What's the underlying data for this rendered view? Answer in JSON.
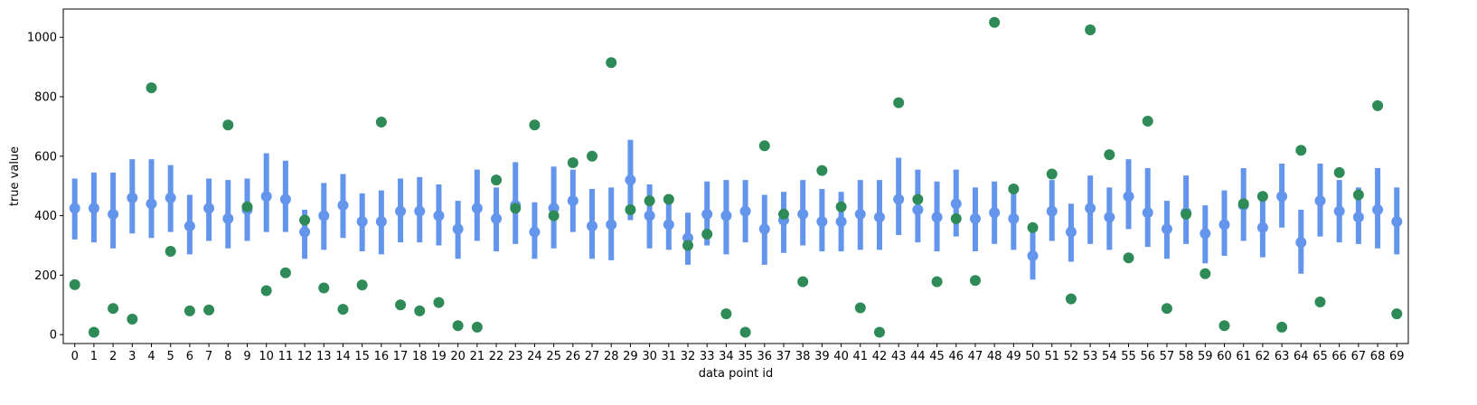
{
  "chart_data": {
    "type": "scatter",
    "xlabel": "data point id",
    "ylabel": "true value",
    "xlim": [
      -0.6,
      69.6
    ],
    "ylim": [
      -30,
      1095
    ],
    "yticks": [
      0,
      200,
      400,
      600,
      800,
      1000
    ],
    "grid": false,
    "colors": {
      "estimate": "#6495ED",
      "true_value": "#2E8B57"
    },
    "x": [
      0,
      1,
      2,
      3,
      4,
      5,
      6,
      7,
      8,
      9,
      10,
      11,
      12,
      13,
      14,
      15,
      16,
      17,
      18,
      19,
      20,
      21,
      22,
      23,
      24,
      25,
      26,
      27,
      28,
      29,
      30,
      31,
      32,
      33,
      34,
      35,
      36,
      37,
      38,
      39,
      40,
      41,
      42,
      43,
      44,
      45,
      46,
      47,
      48,
      49,
      50,
      51,
      52,
      53,
      54,
      55,
      56,
      57,
      58,
      59,
      60,
      61,
      62,
      63,
      64,
      65,
      66,
      67,
      68,
      69
    ],
    "series": [
      {
        "type": "errorbar",
        "y": [
          425,
          425,
          405,
          460,
          440,
          460,
          365,
          425,
          390,
          420,
          465,
          455,
          345,
          400,
          435,
          380,
          380,
          415,
          415,
          400,
          355,
          425,
          390,
          435,
          345,
          425,
          450,
          365,
          370,
          520,
          400,
          370,
          325,
          405,
          400,
          415,
          355,
          385,
          405,
          380,
          380,
          405,
          395,
          455,
          420,
          395,
          440,
          390,
          410,
          390,
          265,
          415,
          345,
          425,
          395,
          465,
          410,
          355,
          410,
          340,
          370,
          435,
          360,
          465,
          310,
          450,
          415,
          395,
          420,
          380
        ],
        "low": [
          320,
          310,
          290,
          340,
          325,
          345,
          270,
          315,
          290,
          315,
          345,
          345,
          255,
          285,
          325,
          280,
          270,
          310,
          310,
          300,
          255,
          315,
          280,
          305,
          255,
          290,
          345,
          255,
          250,
          385,
          290,
          285,
          235,
          300,
          270,
          310,
          235,
          275,
          300,
          280,
          280,
          285,
          285,
          335,
          310,
          280,
          330,
          280,
          305,
          285,
          185,
          315,
          245,
          305,
          285,
          355,
          295,
          255,
          305,
          240,
          265,
          315,
          260,
          360,
          205,
          330,
          310,
          305,
          290,
          270
        ],
        "high": [
          525,
          545,
          545,
          590,
          590,
          570,
          470,
          525,
          520,
          525,
          610,
          585,
          420,
          510,
          540,
          475,
          485,
          525,
          530,
          505,
          450,
          555,
          495,
          580,
          445,
          565,
          555,
          490,
          495,
          655,
          505,
          465,
          410,
          515,
          520,
          520,
          470,
          480,
          520,
          490,
          480,
          520,
          520,
          595,
          555,
          515,
          555,
          495,
          515,
          505,
          345,
          520,
          440,
          535,
          495,
          590,
          560,
          450,
          535,
          435,
          485,
          560,
          460,
          575,
          420,
          575,
          520,
          495,
          560,
          495
        ]
      },
      {
        "type": "scatter",
        "y": [
          168,
          8,
          88,
          52,
          830,
          280,
          80,
          83,
          705,
          430,
          148,
          208,
          385,
          157,
          85,
          167,
          715,
          100,
          80,
          108,
          30,
          25,
          520,
          425,
          705,
          400,
          578,
          600,
          915,
          420,
          450,
          455,
          300,
          338,
          70,
          8,
          635,
          405,
          178,
          552,
          430,
          90,
          8,
          780,
          455,
          178,
          390,
          182,
          1050,
          490,
          360,
          540,
          120,
          1025,
          605,
          258,
          718,
          88,
          405,
          205,
          30,
          440,
          465,
          25,
          620,
          110,
          545,
          470,
          770,
          70
        ]
      }
    ]
  }
}
